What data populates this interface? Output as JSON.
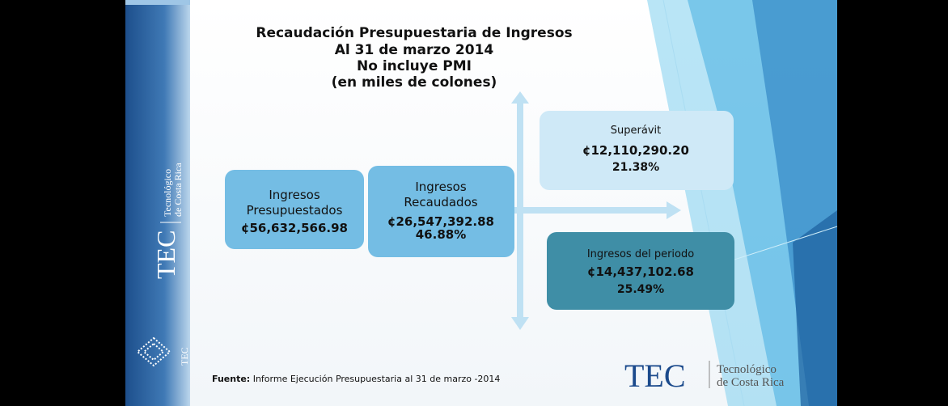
{
  "title": [
    "Recaudación Presupuestaria de Ingresos",
    "Al 31 de marzo 2014",
    "No incluye PMI",
    "(en miles de colones)"
  ],
  "boxes": [
    {
      "label": [
        "Ingresos",
        "Presupuestados"
      ],
      "amount": "¢56,632,566.98"
    },
    {
      "label": [
        "Ingresos",
        "Recaudados"
      ],
      "amount": "¢26,547,392.88",
      "percent": "46.88%"
    },
    {
      "label": [
        "Superávit"
      ],
      "amount": "¢12,110,290.20",
      "percent": "21.38%"
    },
    {
      "label": [
        "Ingresos del periodo"
      ],
      "amount": "¢14,437,102.68",
      "percent": "25.49%"
    }
  ],
  "footer": {
    "source_label": "Fuente:",
    "source_text": "Informe Ejecución Presupuestaria  al 31 de marzo -2014"
  },
  "sidebar": {
    "logo": "TEC",
    "name": [
      "Tecnológico",
      "de Costa Rica"
    ],
    "small_logo": "TEC"
  },
  "brand": {
    "logo": "TEC",
    "name": [
      "Tecnológico",
      "de Costa Rica"
    ]
  }
}
